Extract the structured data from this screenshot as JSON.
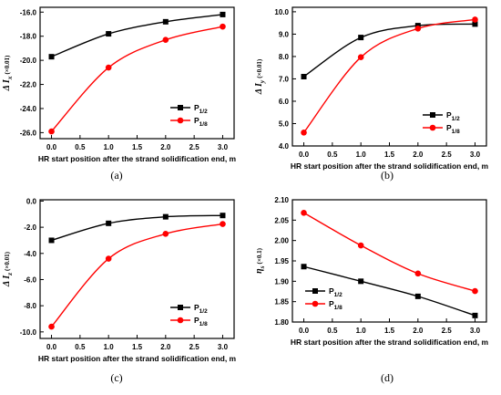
{
  "chart_data": [
    {
      "type": "line",
      "panel_label": "(a)",
      "xlabel": "HR start position after the strand solidification end, m",
      "ylabel": {
        "main": "Δ I",
        "sub": "x",
        "unit": "(×0.01)"
      },
      "x": [
        0.0,
        1.0,
        2.0,
        3.0
      ],
      "xlim": [
        -0.2,
        3.2
      ],
      "ylim": [
        -26.5,
        -15.6
      ],
      "xticks": [
        0.0,
        0.5,
        1.0,
        1.5,
        2.0,
        2.5,
        3.0
      ],
      "xtick_labels": [
        "0.0",
        "0.5",
        "1.0",
        "1.5",
        "2.0",
        "2.5",
        "3.0"
      ],
      "yticks": [
        -26,
        -24,
        -22,
        -20,
        -18,
        -16
      ],
      "ytick_labels": [
        "-26.0",
        "-24.0",
        "-22.0",
        "-20.0",
        "-18.0",
        "-16.0"
      ],
      "legend_position": "bottom-right",
      "series": [
        {
          "name": "P",
          "sub": "1/2",
          "color": "#000000",
          "marker": "square",
          "values": [
            -19.7,
            -17.8,
            -16.8,
            -16.2
          ]
        },
        {
          "name": "P",
          "sub": "1/8",
          "color": "#ff0000",
          "marker": "circle",
          "values": [
            -25.9,
            -20.6,
            -18.3,
            -17.2
          ]
        }
      ]
    },
    {
      "type": "line",
      "panel_label": "(b)",
      "xlabel": "HR start position after the strand solidification end, m",
      "ylabel": {
        "main": "Δ I",
        "sub": "y",
        "unit": "(×0.01)"
      },
      "x": [
        0.0,
        1.0,
        2.0,
        3.0
      ],
      "xlim": [
        -0.2,
        3.2
      ],
      "ylim": [
        4.0,
        10.2
      ],
      "xticks": [
        0.0,
        0.5,
        1.0,
        1.5,
        2.0,
        2.5,
        3.0
      ],
      "xtick_labels": [
        "0.0",
        "0.5",
        "1.0",
        "1.5",
        "2.0",
        "2.5",
        "3.0"
      ],
      "yticks": [
        4,
        5,
        6,
        7,
        8,
        9,
        10
      ],
      "ytick_labels": [
        "4.0",
        "5.0",
        "6.0",
        "7.0",
        "8.0",
        "9.0",
        "10.0"
      ],
      "legend_position": "bottom-right",
      "series": [
        {
          "name": "P",
          "sub": "1/2",
          "color": "#000000",
          "marker": "square",
          "values": [
            7.1,
            8.85,
            9.38,
            9.45
          ]
        },
        {
          "name": "P",
          "sub": "1/8",
          "color": "#ff0000",
          "marker": "circle",
          "values": [
            4.6,
            7.97,
            9.25,
            9.65
          ]
        }
      ]
    },
    {
      "type": "line",
      "panel_label": "(c)",
      "xlabel": "HR start position after the strand solidification end, m",
      "ylabel": {
        "main": "Δ I",
        "sub": "z",
        "unit": "(×0.01)"
      },
      "x": [
        0.0,
        1.0,
        2.0,
        3.0
      ],
      "xlim": [
        -0.2,
        3.2
      ],
      "ylim": [
        -10.5,
        0.1
      ],
      "xticks": [
        0.0,
        0.5,
        1.0,
        1.5,
        2.0,
        2.5,
        3.0
      ],
      "xtick_labels": [
        "0.0",
        "0.5",
        "1.0",
        "1.5",
        "2.0",
        "2.5",
        "3.0"
      ],
      "yticks": [
        -10,
        -8,
        -6,
        -4,
        -2,
        0
      ],
      "ytick_labels": [
        "-10.0",
        "-8.0",
        "-6.0",
        "-4.0",
        "-2.0",
        "0.0"
      ],
      "legend_position": "bottom-right",
      "series": [
        {
          "name": "P",
          "sub": "1/2",
          "color": "#000000",
          "marker": "square",
          "values": [
            -3.0,
            -1.7,
            -1.2,
            -1.1
          ]
        },
        {
          "name": "P",
          "sub": "1/8",
          "color": "#ff0000",
          "marker": "circle",
          "values": [
            -9.6,
            -4.4,
            -2.5,
            -1.75
          ]
        }
      ]
    },
    {
      "type": "line",
      "panel_label": "(d)",
      "xlabel": "HR start position after the strand solidification end, m",
      "ylabel": {
        "main": "η",
        "sub": "s",
        "unit": "(×0.1)"
      },
      "x": [
        0.0,
        1.0,
        2.0,
        3.0
      ],
      "xlim": [
        -0.2,
        3.2
      ],
      "ylim": [
        1.8,
        2.1
      ],
      "xticks": [
        0.0,
        0.5,
        1.0,
        1.5,
        2.0,
        2.5,
        3.0
      ],
      "xtick_labels": [
        "0.0",
        "0.5",
        "1.0",
        "1.5",
        "2.0",
        "2.5",
        "3.0"
      ],
      "yticks": [
        1.8,
        1.85,
        1.9,
        1.95,
        2.0,
        2.05,
        2.1
      ],
      "ytick_labels": [
        "1.80",
        "1.85",
        "1.90",
        "1.95",
        "2.00",
        "2.05",
        "2.10"
      ],
      "legend_position": "bottom-left",
      "series": [
        {
          "name": "P",
          "sub": "1/2",
          "color": "#000000",
          "marker": "square",
          "values": [
            1.936,
            1.9,
            1.863,
            1.816
          ]
        },
        {
          "name": "P",
          "sub": "1/8",
          "color": "#ff0000",
          "marker": "circle",
          "values": [
            2.068,
            1.988,
            1.919,
            1.876
          ]
        }
      ]
    }
  ]
}
